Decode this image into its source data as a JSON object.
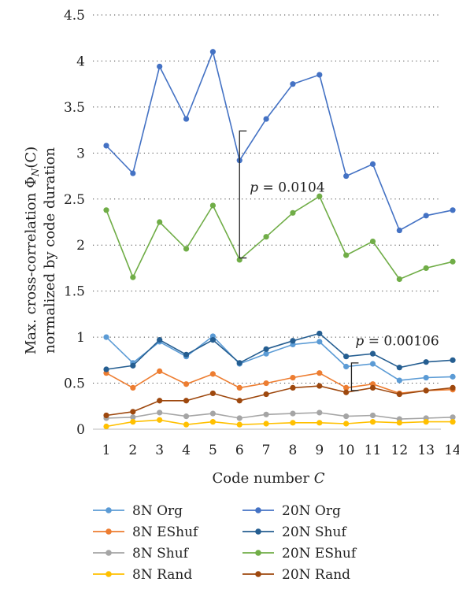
{
  "chart_data": {
    "type": "line",
    "xlabel": "Code number C",
    "ylabel": "Max. cross-correlation ΦN(C) normalized by code duration",
    "ylabel_lines": [
      "Max. cross-correlation Φ",
      "N",
      "(C)",
      "normalized by code duration"
    ],
    "categories": [
      "1",
      "2",
      "3",
      "4",
      "5",
      "6",
      "7",
      "8",
      "9",
      "10",
      "11",
      "12",
      "13",
      "14"
    ],
    "ylim": [
      0,
      4.5
    ],
    "yticks": [
      "0",
      "0.5",
      "1",
      "1.5",
      "2",
      "2.5",
      "3",
      "3.5",
      "4",
      "4.5"
    ],
    "grid": "horizontal dotted",
    "legend_position": "bottom",
    "series": [
      {
        "name": "8N Org",
        "color": "#5B9BD5",
        "values": [
          1.0,
          0.72,
          0.95,
          0.79,
          1.01,
          0.71,
          0.82,
          0.92,
          0.95,
          0.68,
          0.71,
          0.53,
          0.56,
          0.57
        ]
      },
      {
        "name": "8N EShuf",
        "color": "#ED7D31",
        "values": [
          0.61,
          0.45,
          0.63,
          0.49,
          0.6,
          0.45,
          0.5,
          0.56,
          0.61,
          0.45,
          0.49,
          0.39,
          0.42,
          0.43
        ]
      },
      {
        "name": "8N Shuf",
        "color": "#A5A5A5",
        "values": [
          0.12,
          0.13,
          0.18,
          0.14,
          0.17,
          0.12,
          0.16,
          0.17,
          0.18,
          0.14,
          0.15,
          0.11,
          0.12,
          0.13
        ]
      },
      {
        "name": "8N Rand",
        "color": "#FFC000",
        "values": [
          0.03,
          0.08,
          0.1,
          0.05,
          0.08,
          0.05,
          0.06,
          0.07,
          0.07,
          0.06,
          0.08,
          0.07,
          0.08,
          0.08
        ]
      },
      {
        "name": "20N Org",
        "color": "#4472C4",
        "values": [
          3.08,
          2.78,
          3.94,
          3.37,
          4.1,
          2.92,
          3.37,
          3.75,
          3.85,
          2.75,
          2.88,
          2.16,
          2.32,
          2.38
        ]
      },
      {
        "name": "20N Shuf",
        "color": "#255E91",
        "values": [
          0.65,
          0.69,
          0.97,
          0.81,
          0.97,
          0.72,
          0.87,
          0.96,
          1.04,
          0.79,
          0.82,
          0.67,
          0.73,
          0.75
        ]
      },
      {
        "name": "20N EShuf",
        "color": "#70AD47",
        "values": [
          2.38,
          1.65,
          2.25,
          1.96,
          2.43,
          1.84,
          2.09,
          2.35,
          2.53,
          1.89,
          2.04,
          1.63,
          1.75,
          1.82
        ]
      },
      {
        "name": "20N Rand",
        "color": "#9E480E",
        "values": [
          0.15,
          0.19,
          0.31,
          0.31,
          0.39,
          0.31,
          0.38,
          0.45,
          0.47,
          0.4,
          0.45,
          0.38,
          0.42,
          0.45
        ]
      }
    ],
    "annotations": [
      {
        "text_prefix": "p",
        "text_value": " = 0.0104",
        "bracket_y": [
          1.86,
          3.24
        ],
        "bracket_x": 6.0
      },
      {
        "text_prefix": "p",
        "text_value": " = 0.00106",
        "bracket_y": [
          0.42,
          0.72
        ],
        "bracket_x": 10.2
      }
    ]
  }
}
